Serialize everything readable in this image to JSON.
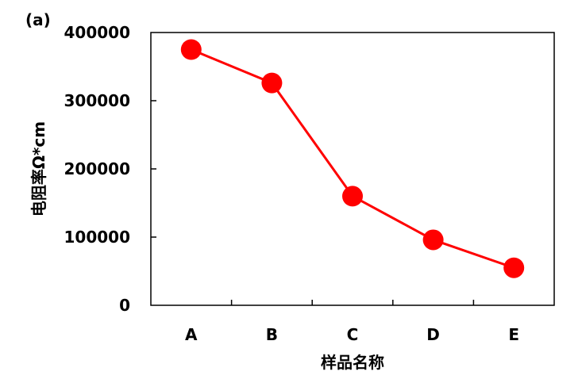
{
  "panel_label": "(a)",
  "chart_data": {
    "type": "line",
    "title": "",
    "xlabel": "样品名称",
    "ylabel": "电阻率Ω*cm",
    "categories": [
      "A",
      "B",
      "C",
      "D",
      "E"
    ],
    "series": [
      {
        "values": [
          375000,
          326000,
          160000,
          96000,
          55000
        ],
        "color": "#ff0000",
        "marker": "circle"
      }
    ],
    "ylim": [
      0,
      400000
    ],
    "yticks": [
      "0",
      "100000",
      "200000",
      "300000",
      "400000"
    ],
    "grid": false,
    "legend": "none"
  }
}
